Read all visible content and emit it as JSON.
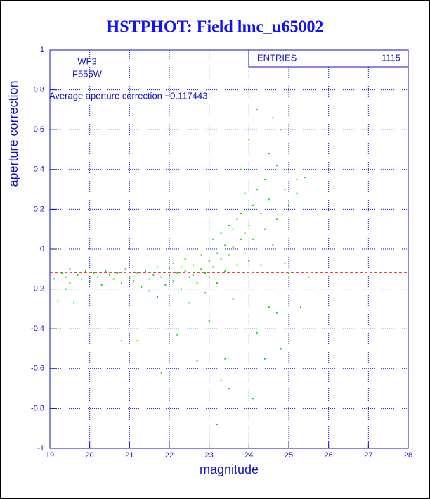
{
  "chart_data": {
    "type": "scatter",
    "title": "HSTPHOT: Field lmc_u65002",
    "x_label": "magnitude",
    "y_label": "aperture correction",
    "annotations": [
      "WF3",
      "F555W",
      "Average aperture correction −0.117443"
    ],
    "stats": {
      "label": "ENTRIES",
      "value": 1115
    },
    "hline": -0.117443,
    "hline_color": "#ff0000",
    "xlim": [
      19,
      28
    ],
    "xticks": [
      19,
      20,
      21,
      22,
      23,
      24,
      25,
      26,
      27,
      28
    ],
    "ylim": [
      -1,
      1
    ],
    "yticks": [
      -1,
      -0.8,
      -0.6,
      -0.4,
      -0.2,
      0,
      0.2,
      0.4,
      0.6,
      0.8,
      1
    ],
    "grid": true,
    "color": "#00e000",
    "x": [
      19.1,
      19.2,
      19.3,
      19.4,
      19.5,
      19.5,
      19.6,
      19.7,
      19.8,
      19.9,
      20.0,
      20.1,
      20.2,
      20.3,
      20.4,
      20.5,
      20.6,
      20.7,
      20.8,
      20.9,
      21.0,
      21.0,
      21.1,
      21.2,
      21.3,
      21.4,
      21.5,
      21.5,
      21.6,
      21.7,
      21.7,
      21.8,
      21.8,
      21.9,
      22.0,
      22.0,
      22.1,
      22.1,
      22.2,
      22.2,
      22.3,
      22.3,
      22.4,
      22.4,
      22.5,
      22.5,
      22.6,
      22.6,
      22.7,
      22.7,
      22.8,
      22.8,
      22.9,
      22.9,
      23.0,
      23.0,
      23.0,
      23.1,
      23.1,
      23.2,
      23.2,
      23.2,
      23.3,
      23.3,
      23.3,
      23.4,
      23.4,
      23.5,
      23.5,
      23.5,
      23.6,
      23.6,
      23.6,
      23.7,
      23.7,
      23.8,
      23.8,
      23.8,
      23.9,
      23.9,
      23.9,
      24.0,
      24.0,
      24.0,
      24.1,
      24.1,
      24.2,
      24.2,
      24.2,
      24.3,
      24.3,
      24.4,
      24.4,
      24.4,
      24.5,
      24.5,
      24.5,
      24.6,
      24.6,
      24.7,
      24.7,
      24.7,
      24.8,
      24.8,
      24.9,
      24.9,
      25.0,
      25.0,
      25.0,
      25.2,
      25.2,
      25.3,
      25.4,
      25.5,
      24.1,
      23.4,
      21.2,
      20.8,
      19.4
    ],
    "y": [
      -0.15,
      -0.26,
      -0.12,
      -0.14,
      -0.17,
      -0.1,
      -0.27,
      -0.13,
      -0.15,
      -0.11,
      -0.16,
      -0.12,
      -0.14,
      -0.18,
      -0.11,
      -0.13,
      -0.15,
      -0.12,
      -0.17,
      -0.1,
      -0.14,
      -0.33,
      -0.16,
      -0.12,
      -0.19,
      -0.11,
      -0.15,
      -0.21,
      -0.13,
      -0.09,
      -0.24,
      -0.14,
      -0.62,
      -0.18,
      -0.1,
      -0.13,
      -0.07,
      -0.16,
      -0.12,
      -0.43,
      -0.09,
      -0.2,
      -0.11,
      -0.05,
      -0.14,
      -0.27,
      -0.08,
      -0.13,
      -0.17,
      -0.56,
      -0.1,
      -0.03,
      -0.12,
      -0.22,
      -0.06,
      -0.14,
      -0.36,
      0.05,
      -0.09,
      -0.02,
      -0.17,
      -0.88,
      0.08,
      -0.05,
      -0.66,
      0.02,
      -0.11,
      0.12,
      -0.03,
      -0.7,
      0.1,
      0.01,
      -0.25,
      0.15,
      -0.08,
      0.18,
      0.05,
      0.4,
      0.08,
      -0.02,
      0.28,
      0.55,
      0.12,
      -0.06,
      0.22,
      0.05,
      0.3,
      0.7,
      -0.42,
      0.18,
      -0.08,
      0.35,
      0.1,
      -0.55,
      0.48,
      0.25,
      -0.29,
      0.66,
      0.02,
      0.42,
      0.15,
      -0.32,
      0.6,
      -0.5,
      0.3,
      -0.07,
      0.52,
      0.22,
      -0.12,
      0.35,
      0.28,
      -0.29,
      0.36,
      -0.14,
      -0.75,
      -0.55,
      -0.46,
      -0.46,
      -0.2
    ]
  }
}
